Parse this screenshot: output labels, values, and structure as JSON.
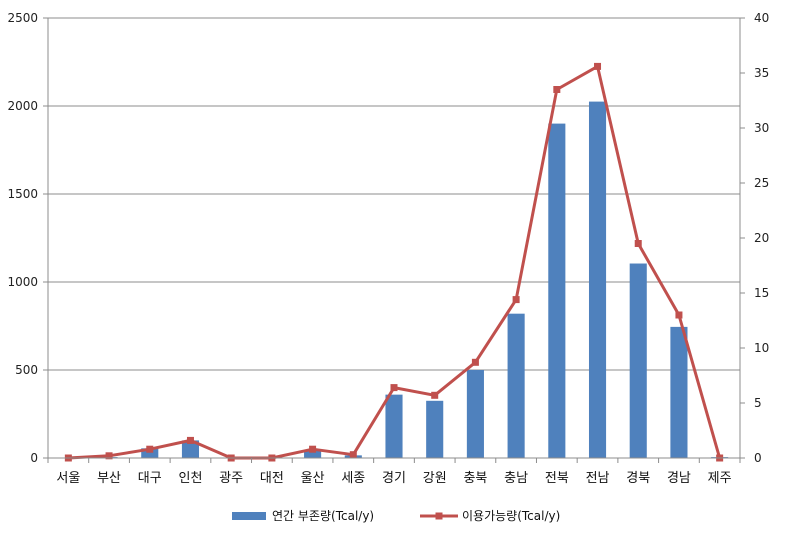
{
  "chart_data": {
    "type": "bar+line",
    "categories": [
      "서울",
      "부산",
      "대구",
      "인천",
      "광주",
      "대전",
      "울산",
      "세종",
      "경기",
      "강원",
      "충북",
      "충남",
      "전북",
      "전남",
      "경북",
      "경남",
      "제주"
    ],
    "series": [
      {
        "name": "연간 부존량(Tcal/y)",
        "type": "bar",
        "axis": "left",
        "color": "#4F81BD",
        "values": [
          0,
          5,
          55,
          100,
          0,
          0,
          45,
          15,
          360,
          325,
          500,
          820,
          1900,
          2025,
          1105,
          745,
          5
        ]
      },
      {
        "name": "이용가능량(Tcal/y)",
        "type": "line",
        "axis": "right",
        "color": "#C0504D",
        "values": [
          0,
          0.2,
          0.8,
          1.6,
          0,
          0,
          0.8,
          0.3,
          6.4,
          5.7,
          8.7,
          14.4,
          33.5,
          35.6,
          19.5,
          13.0,
          0
        ]
      }
    ],
    "y_left": {
      "min": 0,
      "max": 2500,
      "ticks": [
        "0",
        "500",
        "1000",
        "1500",
        "2000",
        "2500"
      ]
    },
    "y_right": {
      "min": 0,
      "max": 40,
      "ticks": [
        "0",
        "5",
        "10",
        "15",
        "20",
        "25",
        "30",
        "35",
        "40"
      ]
    },
    "grid": true,
    "legend_position": "bottom",
    "legend": [
      "연간 부존량(Tcal/y)",
      "이용가능량(Tcal/y)"
    ]
  }
}
